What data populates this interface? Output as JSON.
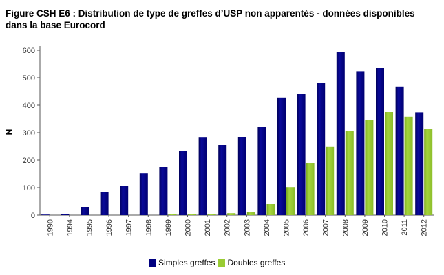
{
  "title": "Figure CSH E6 : Distribution de type de greffes d’USP non apparentés - données disponibles\ndans la base Eurocord",
  "chart_data": {
    "type": "bar",
    "title": "Figure CSH E6 : Distribution de type de greffes d’USP non apparentés - données disponibles dans la base Eurocord",
    "xlabel": "",
    "ylabel": "N",
    "ylim": [
      0,
      600
    ],
    "yticks": [
      0,
      100,
      200,
      300,
      400,
      500,
      600
    ],
    "categories": [
      "1990",
      "1994",
      "1995",
      "1996",
      "1997",
      "1998",
      "1999",
      "2000",
      "2001",
      "2002",
      "2003",
      "2004",
      "2005",
      "2006",
      "2007",
      "2008",
      "2009",
      "2010",
      "2011",
      "2012"
    ],
    "series": [
      {
        "name": "Simples greffes",
        "color": "#000080",
        "values": [
          2,
          5,
          30,
          85,
          105,
          152,
          175,
          235,
          282,
          255,
          285,
          320,
          428,
          440,
          482,
          593,
          524,
          535,
          468,
          374
        ]
      },
      {
        "name": "Doubles greffes",
        "color": "#99cc33",
        "values": [
          0,
          0,
          0,
          0,
          0,
          0,
          3,
          3,
          5,
          7,
          10,
          40,
          102,
          190,
          248,
          305,
          345,
          375,
          358,
          315
        ]
      }
    ],
    "legend_position": "bottom-center",
    "grid": false
  }
}
